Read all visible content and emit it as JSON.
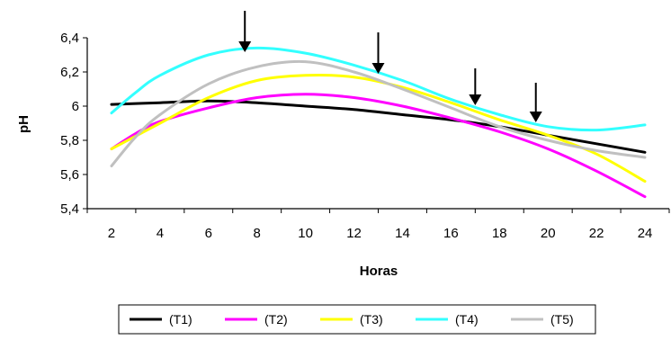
{
  "chart_data": {
    "type": "line",
    "title": "",
    "xlabel": "Horas",
    "ylabel": "pH",
    "xlim": [
      2,
      24
    ],
    "ylim": [
      5.4,
      6.4
    ],
    "x_ticks": [
      2,
      4,
      6,
      8,
      10,
      12,
      14,
      16,
      18,
      20,
      22,
      24
    ],
    "x_tick_labels": [
      "2",
      "4",
      "6",
      "8",
      "10",
      "12",
      "14",
      "16",
      "18",
      "20",
      "22",
      "24"
    ],
    "y_ticks": [
      5.4,
      5.6,
      5.8,
      6.0,
      6.2,
      6.4
    ],
    "y_tick_labels": [
      "5,4",
      "5,6",
      "5,8",
      "6",
      "6,2",
      "6,4"
    ],
    "grid": false,
    "legend_position": "bottom",
    "arrows_at_x": [
      7.5,
      13,
      17,
      19.5
    ],
    "series": [
      {
        "name": "(T1)",
        "color": "#000000",
        "x": [
          2,
          4,
          6,
          8,
          10,
          12,
          14,
          16,
          18,
          20,
          22,
          24
        ],
        "values": [
          6.01,
          6.02,
          6.03,
          6.02,
          6.0,
          5.98,
          5.95,
          5.92,
          5.88,
          5.83,
          5.78,
          5.73
        ]
      },
      {
        "name": "(T2)",
        "color": "#ff00ff",
        "x": [
          2,
          3,
          4,
          6,
          8,
          10,
          12,
          14,
          16,
          18,
          20,
          22,
          24
        ],
        "values": [
          5.75,
          5.84,
          5.91,
          5.99,
          6.05,
          6.07,
          6.05,
          6.0,
          5.93,
          5.85,
          5.75,
          5.62,
          5.47
        ]
      },
      {
        "name": "(T3)",
        "color": "#ffff00",
        "x": [
          2,
          4,
          6,
          8,
          10,
          12,
          14,
          16,
          18,
          20,
          22,
          24
        ],
        "values": [
          5.75,
          5.9,
          6.05,
          6.15,
          6.18,
          6.17,
          6.11,
          6.02,
          5.92,
          5.83,
          5.72,
          5.56
        ]
      },
      {
        "name": "(T4)",
        "color": "#33ffff",
        "x": [
          2,
          3,
          4,
          6,
          8,
          10,
          12,
          14,
          16,
          18,
          20,
          22,
          24
        ],
        "values": [
          5.96,
          6.08,
          6.18,
          6.3,
          6.34,
          6.31,
          6.24,
          6.15,
          6.04,
          5.95,
          5.88,
          5.86,
          5.89
        ]
      },
      {
        "name": "(T5)",
        "color": "#c0c0c0",
        "x": [
          2,
          3,
          4,
          6,
          8,
          10,
          12,
          14,
          16,
          18,
          20,
          22,
          24
        ],
        "values": [
          5.65,
          5.82,
          5.95,
          6.13,
          6.23,
          6.26,
          6.2,
          6.1,
          5.99,
          5.88,
          5.8,
          5.74,
          5.7
        ]
      }
    ]
  }
}
